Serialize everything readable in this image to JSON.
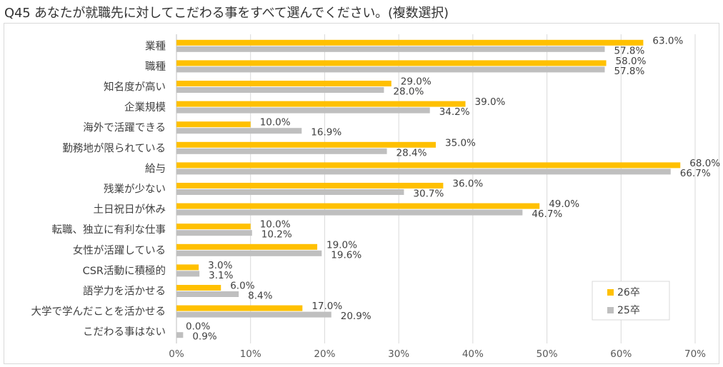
{
  "title": "Q45 あなたが就職先に対してこだわる事をすべて選んでください。(複数選択)",
  "colors": {
    "series_26": "#FFC000",
    "series_25": "#BFBFBF",
    "grid": "#D9D9D9",
    "axis": "#BFBFBF"
  },
  "chart_data": {
    "type": "bar",
    "orientation": "horizontal",
    "title": "Q45 あなたが就職先に対してこだわる事をすべて選んでください。(複数選択)",
    "xlim": [
      0,
      70
    ],
    "x_ticks": [
      "0%",
      "10%",
      "20%",
      "30%",
      "40%",
      "50%",
      "60%",
      "70%"
    ],
    "grid": "vertical",
    "legend_position": "bottom-right",
    "categories": [
      "業種",
      "職種",
      "知名度が高い",
      "企業規模",
      "海外で活躍できる",
      "勤務地が限られている",
      "給与",
      "残業が少ない",
      "土日祝日が休み",
      "転職、独立に有利な仕事",
      "女性が活躍している",
      "CSR活動に積極的",
      "語学力を活かせる",
      "大学で学んだことを活かせる",
      "こだわる事はない"
    ],
    "series": [
      {
        "name": "26卒",
        "values": [
          63.0,
          58.0,
          29.0,
          39.0,
          10.0,
          35.0,
          68.0,
          36.0,
          49.0,
          10.0,
          19.0,
          3.0,
          6.0,
          17.0,
          0.0
        ],
        "labels": [
          "63.0%",
          "58.0%",
          "29.0%",
          "39.0%",
          "10.0%",
          "35.0%",
          "68.0%",
          "36.0%",
          "49.0%",
          "10.0%",
          "19.0%",
          "3.0%",
          "6.0%",
          "17.0%",
          "0.0%"
        ]
      },
      {
        "name": "25卒",
        "values": [
          57.8,
          57.8,
          28.0,
          34.2,
          16.9,
          28.4,
          66.7,
          30.7,
          46.7,
          10.2,
          19.6,
          3.1,
          8.4,
          20.9,
          0.9
        ],
        "labels": [
          "57.8%",
          "57.8%",
          "28.0%",
          "34.2%",
          "16.9%",
          "28.4%",
          "66.7%",
          "30.7%",
          "46.7%",
          "10.2%",
          "19.6%",
          "3.1%",
          "8.4%",
          "20.9%",
          "0.9%"
        ]
      }
    ]
  }
}
